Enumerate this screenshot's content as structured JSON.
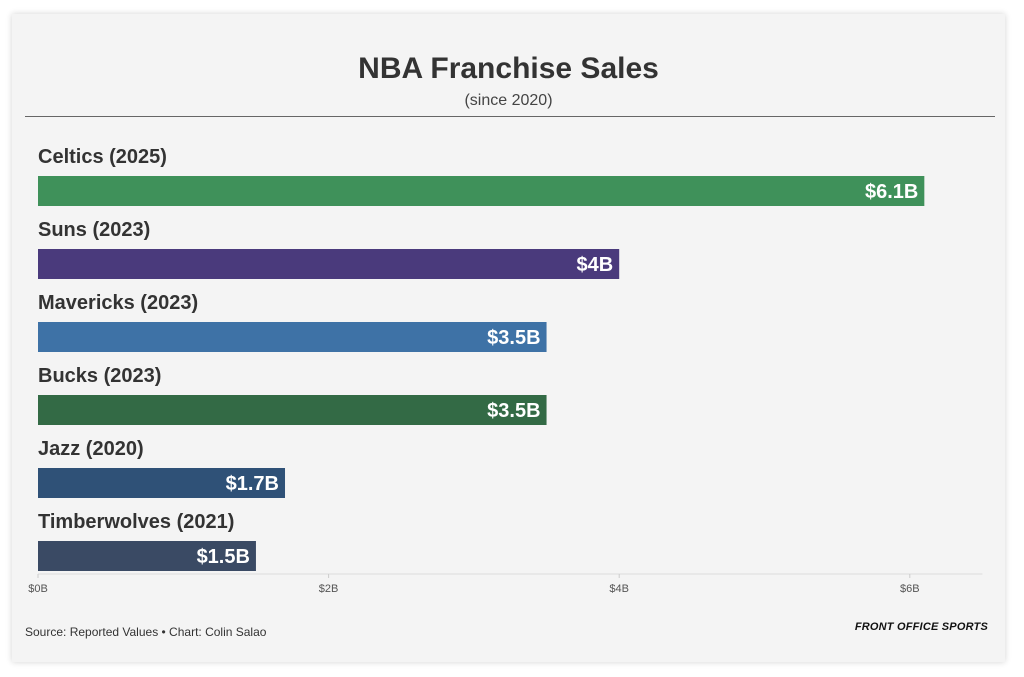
{
  "title": "NBA Franchise Sales",
  "subtitle": "(since 2020)",
  "source": "Source: Reported Values • Chart: Colin Salao",
  "brand": "FRONT OFFICE SPORTS",
  "chart_data": {
    "type": "bar",
    "orientation": "horizontal",
    "title": "NBA Franchise Sales",
    "subtitle": "(since 2020)",
    "xlabel": "",
    "ylabel": "",
    "xlim": [
      0,
      6.5
    ],
    "grid": false,
    "categories": [
      "Celtics (2025)",
      "Suns (2023)",
      "Mavericks (2023)",
      "Bucks (2023)",
      "Jazz (2020)",
      "Timberwolves (2021)"
    ],
    "values": [
      6.1,
      4.0,
      3.5,
      3.5,
      1.7,
      1.5
    ],
    "value_labels": [
      "$6.1B",
      "$4B",
      "$3.5B",
      "$3.5B",
      "$1.7B",
      "$1.5B"
    ],
    "colors": [
      "#3f915a",
      "#4a3a7c",
      "#3e72a6",
      "#336a45",
      "#2f5177",
      "#3a4a64"
    ],
    "x_ticks": [
      0,
      2,
      4,
      6
    ],
    "x_tick_labels": [
      "$0B",
      "$2B",
      "$4B",
      "$6B"
    ]
  }
}
